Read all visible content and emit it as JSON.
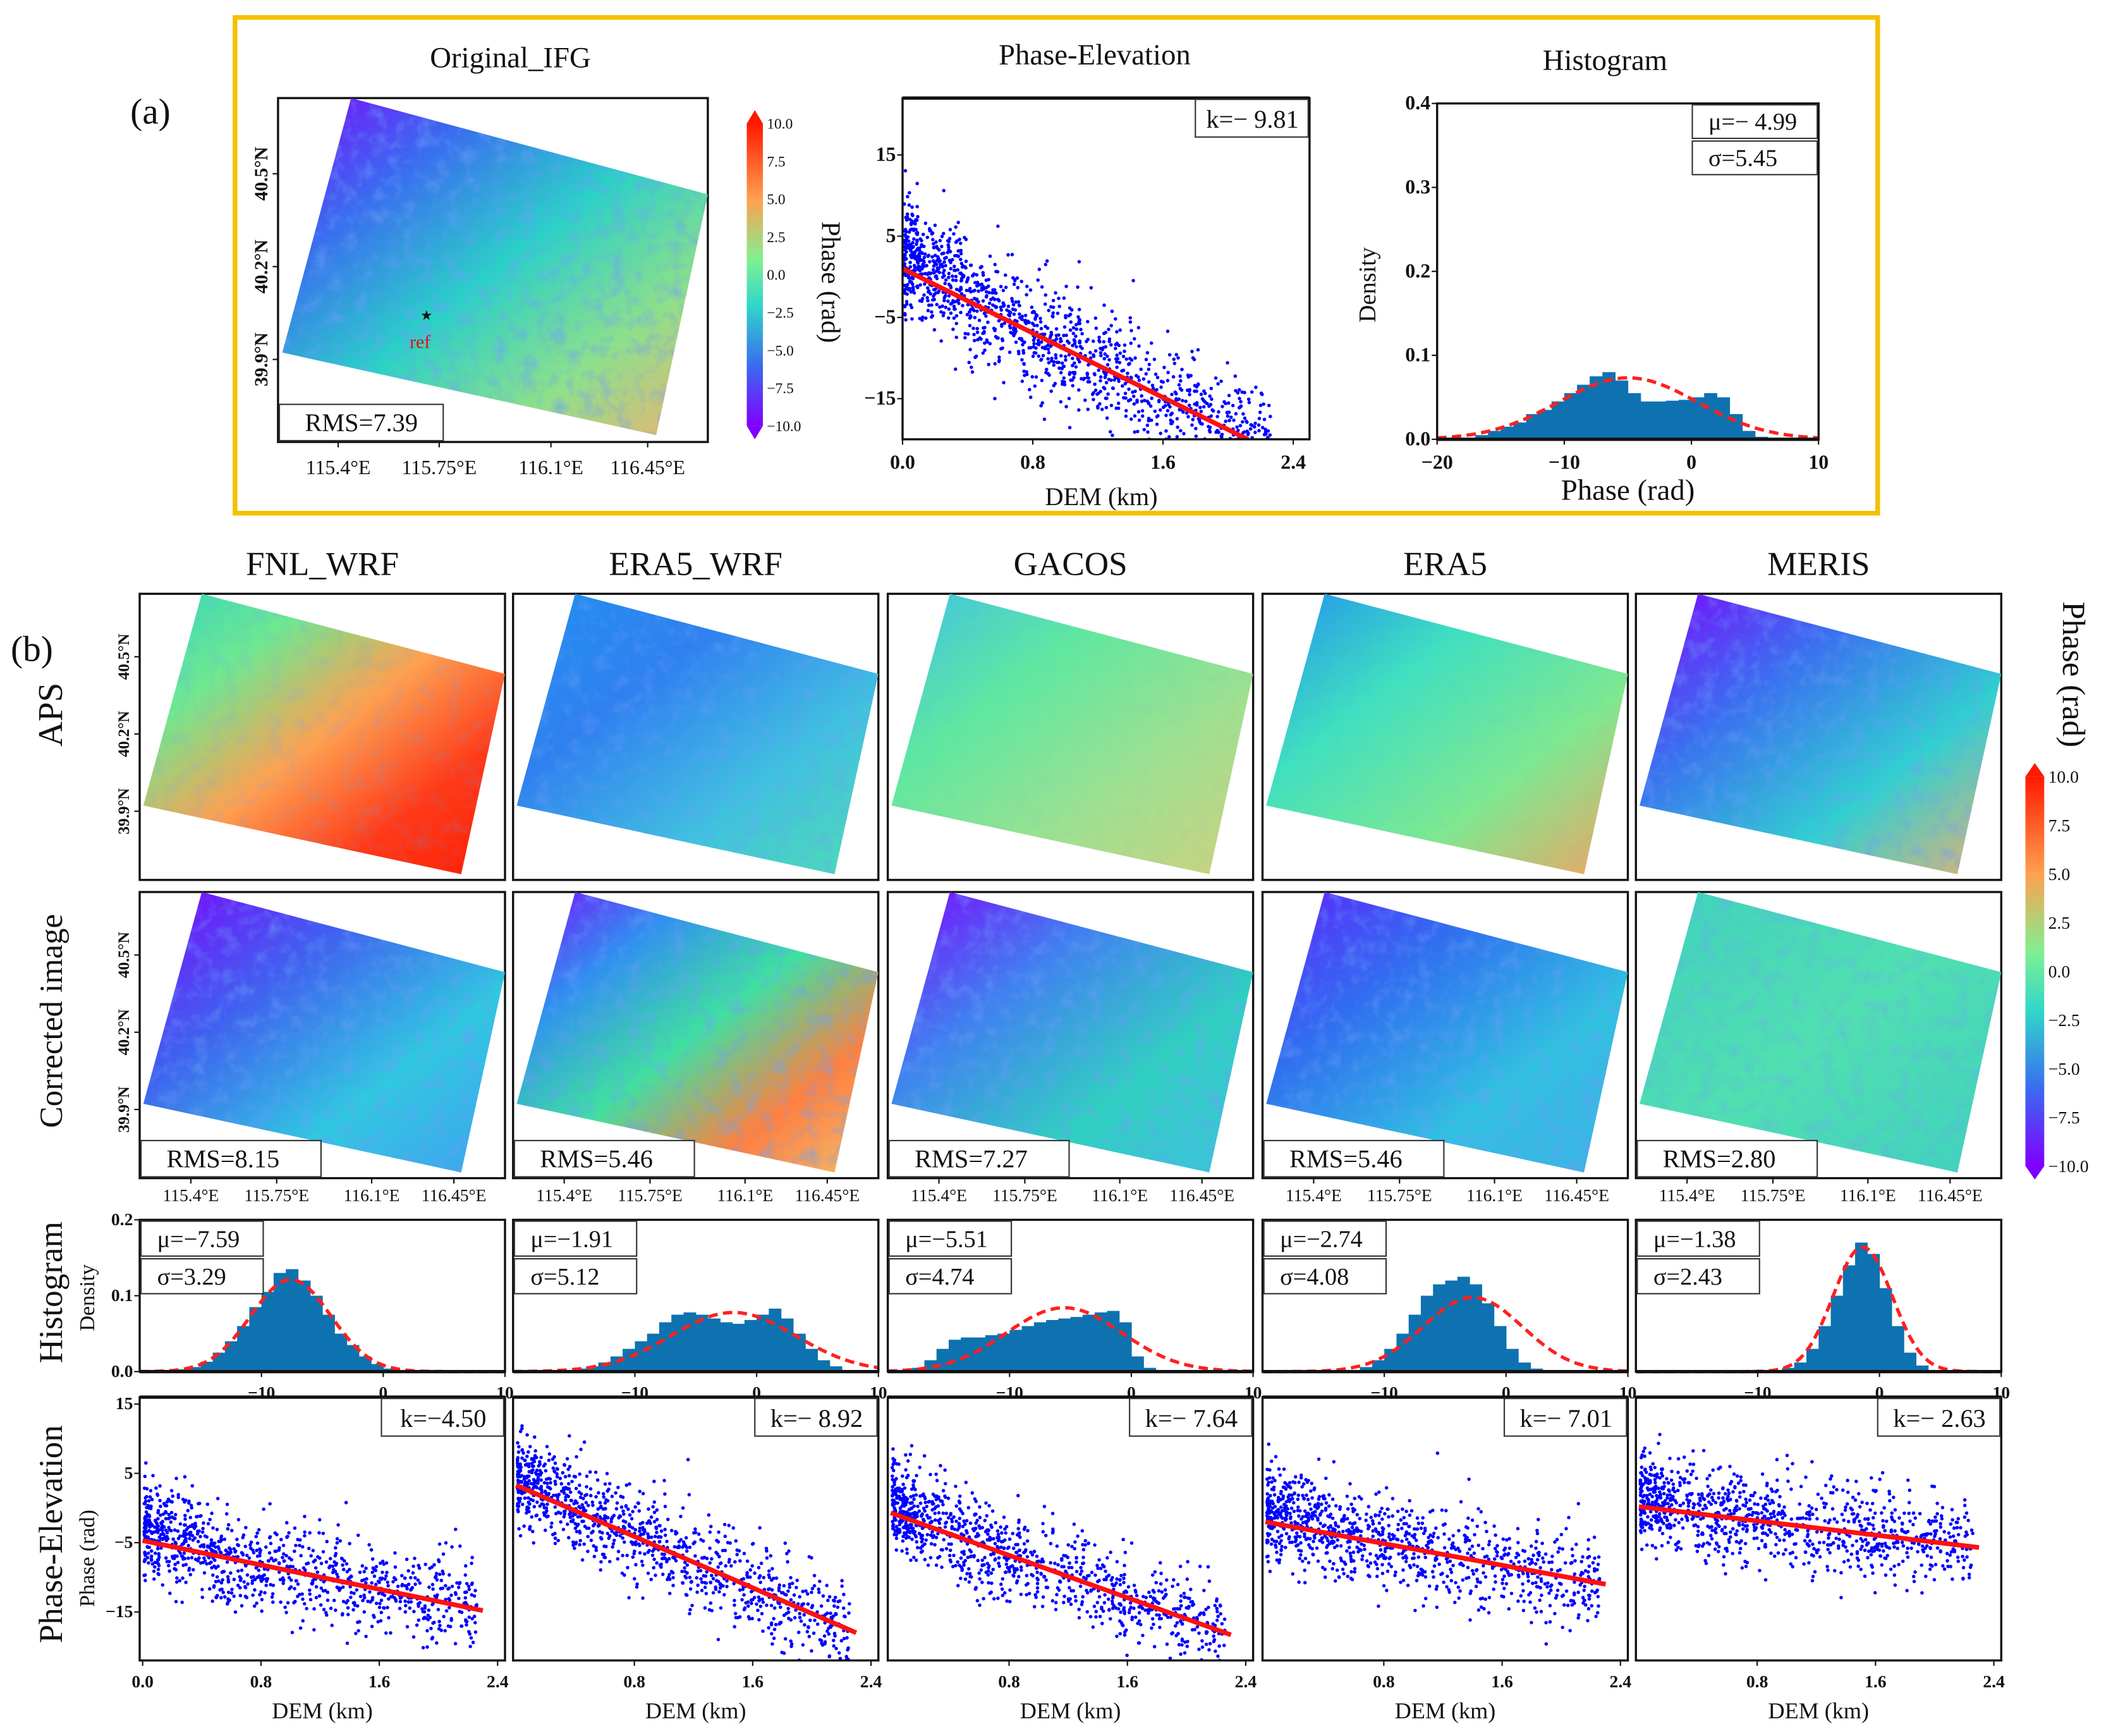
{
  "figure_labels": {
    "a": "(a)",
    "b": "(b)"
  },
  "panel_a": {
    "titles": {
      "map": "Original_IFG",
      "scatter": "Phase-Elevation",
      "hist": "Histogram"
    },
    "map": {
      "rms": "RMS=7.39",
      "ref": "ref",
      "gradient": [
        "#8000ff",
        "#3a6cf0",
        "#2ad0c8",
        "#8ee08a",
        "#f4b070"
      ],
      "noise": 0.55
    },
    "lat_ticks": [
      "39.9°N",
      "40.2°N",
      "40.5°N"
    ],
    "lon_ticks": [
      "115.4°E",
      "115.75°E",
      "116.1°E",
      "116.45°E"
    ],
    "colorbar": {
      "label": "Phase (rad)",
      "ticks": [
        "10.0",
        "7.5",
        "5.0",
        "2.5",
        "0.0",
        "−2.5",
        "−5.0",
        "−7.5",
        "−10.0"
      ]
    }
  },
  "panel_b": {
    "columns": [
      "FNL_WRF",
      "ERA5_WRF",
      "GACOS",
      "ERA5",
      "MERIS"
    ],
    "row_labels": {
      "aps": "APS",
      "corrected": "Corrected image",
      "hist": "Histogram",
      "scatter": "Phase-Elevation"
    },
    "axis_labels": {
      "density": "Density",
      "phase": "Phase (rad)",
      "dem": "DEM (km)"
    },
    "lat_ticks": [
      "39.9°N",
      "40.2°N",
      "40.5°N"
    ],
    "lon_ticks": [
      "115.4°E",
      "115.75°E",
      "116.1°E",
      "116.45°E"
    ],
    "colorbar": {
      "label": "Phase (rad)",
      "ticks": [
        "10.0",
        "7.5",
        "5.0",
        "2.5",
        "0.0",
        "−2.5",
        "−5.0",
        "−7.5",
        "−10.0"
      ]
    },
    "aps_maps": [
      {
        "gradient": [
          "#30d8c0",
          "#70e890",
          "#ffa050",
          "#ff3a18",
          "#ff1a00"
        ],
        "noise": 0.2
      },
      {
        "gradient": [
          "#2090f0",
          "#3080f0",
          "#40c0e0",
          "#50e0b0"
        ],
        "noise": 0.4
      },
      {
        "gradient": [
          "#40c0e8",
          "#60e8a0",
          "#a0e090",
          "#d0d080"
        ],
        "noise": 0.05
      },
      {
        "gradient": [
          "#2090f0",
          "#40e0c0",
          "#80e890",
          "#f8a060"
        ],
        "noise": 0.05
      },
      {
        "gradient": [
          "#8000ff",
          "#3a70f0",
          "#30d0d0",
          "#f0b070"
        ],
        "noise": 0.5
      }
    ],
    "corrected_maps": [
      {
        "rms": "RMS=8.15",
        "gradient": [
          "#8000ff",
          "#4060f0",
          "#30c8e0",
          "#40a0f0"
        ],
        "noise": 0.5
      },
      {
        "rms": "RMS=5.46",
        "gradient": [
          "#8000ff",
          "#3090f0",
          "#40e0a0",
          "#ff8040",
          "#f0c070"
        ],
        "noise": 0.5
      },
      {
        "rms": "RMS=7.27",
        "gradient": [
          "#8000ff",
          "#4080f0",
          "#30d0c0",
          "#40c0e0"
        ],
        "noise": 0.5
      },
      {
        "rms": "RMS=5.46",
        "gradient": [
          "#6020ff",
          "#3070f0",
          "#30c0e0",
          "#40b0e8"
        ],
        "noise": 0.5
      },
      {
        "rms": "RMS=2.80",
        "gradient": [
          "#40d0c0",
          "#50e0b0",
          "#40d0c0"
        ],
        "noise": 0.35
      }
    ]
  },
  "chart_data": [
    {
      "id": "a-scatter",
      "type": "scatter",
      "title": "Phase-Elevation",
      "xlabel": "DEM (km)",
      "ylabel": "",
      "xlim": [
        0,
        2.5
      ],
      "ylim": [
        -20,
        22
      ],
      "xticks": [
        0,
        0.8,
        1.6,
        2.4
      ],
      "xtick_labels": [
        "0.0",
        "0.8",
        "1.6",
        "2.4"
      ],
      "yticks": [
        15,
        5,
        -5,
        -15
      ],
      "ytick_labels": [
        "15",
        "5",
        "−5",
        "−15"
      ],
      "fit_line": {
        "x": [
          0,
          2.12
        ],
        "y": [
          1.0,
          -20.0
        ]
      },
      "annotation": "k=− 9.81"
    },
    {
      "id": "a-hist",
      "type": "bar",
      "title": "Histogram",
      "xlabel": "Phase (rad)",
      "ylabel": "Density",
      "xlim": [
        -20,
        10
      ],
      "ylim": [
        0,
        0.4
      ],
      "xticks": [
        -20,
        -10,
        0,
        10
      ],
      "xtick_labels": [
        "−20",
        "−10",
        "0",
        "10"
      ],
      "yticks": [
        0,
        0.1,
        0.2,
        0.3,
        0.4
      ],
      "ytick_labels": [
        "0.0",
        "0.1",
        "0.2",
        "0.3",
        "0.4"
      ],
      "bin_start": -20,
      "bin_width": 1,
      "density": [
        0,
        0,
        0,
        0.005,
        0.01,
        0.015,
        0.02,
        0.03,
        0.035,
        0.045,
        0.055,
        0.065,
        0.075,
        0.08,
        0.07,
        0.055,
        0.045,
        0.045,
        0.046,
        0.047,
        0.05,
        0.055,
        0.05,
        0.03,
        0.01,
        0.003,
        0,
        0,
        0,
        0
      ],
      "fit": {
        "mu": -4.99,
        "sigma": 5.45
      },
      "annotations": [
        "μ=− 4.99",
        "σ=5.45"
      ]
    },
    {
      "id": "b-hist-FNL_WRF",
      "type": "bar",
      "xlim": [
        -20,
        10
      ],
      "ylim": [
        0,
        0.2
      ],
      "xticks": [
        -10,
        0,
        10
      ],
      "xtick_labels": [
        "−10",
        "0",
        "10"
      ],
      "yticks": [
        0,
        0.1,
        0.2
      ],
      "ytick_labels": [
        "0.0",
        "0.1",
        "0.2"
      ],
      "bin_start": -20,
      "bin_width": 1,
      "density": [
        0,
        0.0005,
        0.001,
        0.003,
        0.006,
        0.013,
        0.025,
        0.04,
        0.06,
        0.085,
        0.105,
        0.13,
        0.135,
        0.12,
        0.1,
        0.075,
        0.05,
        0.035,
        0.02,
        0.01,
        0.004,
        0.002,
        0,
        0,
        0,
        0,
        0,
        0,
        0,
        0
      ],
      "fit": {
        "mu": -7.59,
        "sigma": 3.29
      },
      "annotations": [
        "μ=−7.59",
        "σ=3.29"
      ]
    },
    {
      "id": "b-hist-ERA5_WRF",
      "type": "bar",
      "xlim": [
        -20,
        10
      ],
      "ylim": [
        0,
        0.2
      ],
      "xticks": [
        -10,
        0,
        10
      ],
      "xtick_labels": [
        "−10",
        "0",
        "10"
      ],
      "yticks": [],
      "ytick_labels": [],
      "bin_start": -20,
      "bin_width": 1,
      "density": [
        0,
        0,
        0,
        0.001,
        0.002,
        0.004,
        0.007,
        0.012,
        0.02,
        0.03,
        0.04,
        0.05,
        0.065,
        0.075,
        0.078,
        0.075,
        0.07,
        0.065,
        0.063,
        0.068,
        0.075,
        0.083,
        0.07,
        0.05,
        0.03,
        0.015,
        0.007,
        0.002,
        0,
        0
      ],
      "fit": {
        "mu": -1.91,
        "sigma": 5.12
      },
      "annotations": [
        "μ=−1.91",
        "σ=5.12"
      ]
    },
    {
      "id": "b-hist-GACOS",
      "type": "bar",
      "xlim": [
        -20,
        10
      ],
      "ylim": [
        0,
        0.2
      ],
      "xticks": [
        -10,
        0,
        10
      ],
      "xtick_labels": [
        "−10",
        "0",
        "10"
      ],
      "yticks": [],
      "ytick_labels": [],
      "bin_start": -20,
      "bin_width": 1,
      "density": [
        0,
        0,
        0.005,
        0.015,
        0.03,
        0.042,
        0.045,
        0.045,
        0.048,
        0.05,
        0.055,
        0.06,
        0.065,
        0.068,
        0.07,
        0.072,
        0.075,
        0.078,
        0.08,
        0.065,
        0.02,
        0.005,
        0.001,
        0,
        0,
        0,
        0,
        0,
        0,
        0
      ],
      "fit": {
        "mu": -5.51,
        "sigma": 4.74
      },
      "annotations": [
        "μ=−5.51",
        "σ=4.74"
      ]
    },
    {
      "id": "b-hist-ERA5",
      "type": "bar",
      "xlim": [
        -20,
        10
      ],
      "ylim": [
        0,
        0.2
      ],
      "xticks": [
        -10,
        0,
        10
      ],
      "xtick_labels": [
        "−10",
        "0",
        "10"
      ],
      "yticks": [],
      "ytick_labels": [],
      "bin_start": -20,
      "bin_width": 1,
      "density": [
        0,
        0,
        0,
        0,
        0,
        0,
        0,
        0.002,
        0.006,
        0.015,
        0.03,
        0.05,
        0.075,
        0.1,
        0.115,
        0.12,
        0.125,
        0.115,
        0.09,
        0.06,
        0.03,
        0.012,
        0.004,
        0.001,
        0,
        0,
        0,
        0,
        0,
        0
      ],
      "fit": {
        "mu": -2.74,
        "sigma": 4.08
      },
      "annotations": [
        "μ=−2.74",
        "σ=4.08"
      ]
    },
    {
      "id": "b-hist-MERIS",
      "type": "bar",
      "xlim": [
        -20,
        10
      ],
      "ylim": [
        0,
        0.2
      ],
      "xticks": [
        -10,
        0,
        10
      ],
      "xtick_labels": [
        "−10",
        "0",
        "10"
      ],
      "yticks": [],
      "ytick_labels": [],
      "bin_start": -20,
      "bin_width": 1,
      "density": [
        0,
        0,
        0,
        0,
        0,
        0,
        0,
        0,
        0,
        0,
        0,
        0.002,
        0.005,
        0.012,
        0.03,
        0.06,
        0.1,
        0.14,
        0.17,
        0.155,
        0.11,
        0.06,
        0.025,
        0.008,
        0.002,
        0,
        0,
        0,
        0,
        0
      ],
      "fit": {
        "mu": -1.38,
        "sigma": 2.43
      },
      "annotations": [
        "μ=−1.38",
        "σ=2.43"
      ]
    },
    {
      "id": "b-scatter-FNL_WRF",
      "type": "scatter",
      "xlabel": "DEM (km)",
      "xlim": [
        -0.02,
        2.45
      ],
      "ylim": [
        -22,
        16
      ],
      "xticks": [
        0,
        0.8,
        1.6,
        2.4
      ],
      "xtick_labels": [
        "0.0",
        "0.8",
        "1.6",
        "2.4"
      ],
      "yticks": [
        15,
        5,
        -5,
        -15
      ],
      "ytick_labels": [
        "15",
        "5",
        "−5",
        "−15"
      ],
      "fit_line": {
        "x": [
          0,
          2.3
        ],
        "y": [
          -4.7,
          -14.8
        ]
      },
      "annotation": "k=−4.50"
    },
    {
      "id": "b-scatter-ERA5_WRF",
      "type": "scatter",
      "xlabel": "DEM (km)",
      "xlim": [
        -0.02,
        2.45
      ],
      "ylim": [
        -22,
        16
      ],
      "xticks": [
        0.8,
        1.6,
        2.4
      ],
      "xtick_labels": [
        "0.8",
        "1.6",
        "2.4"
      ],
      "yticks": [],
      "ytick_labels": [],
      "fit_line": {
        "x": [
          0,
          2.3
        ],
        "y": [
          3.3,
          -18.0
        ]
      },
      "annotation": "k=− 8.92"
    },
    {
      "id": "b-scatter-GACOS",
      "type": "scatter",
      "xlabel": "DEM (km)",
      "xlim": [
        -0.02,
        2.45
      ],
      "ylim": [
        -22,
        16
      ],
      "xticks": [
        0.8,
        1.6,
        2.4
      ],
      "xtick_labels": [
        "0.8",
        "1.6",
        "2.4"
      ],
      "yticks": [],
      "ytick_labels": [],
      "fit_line": {
        "x": [
          0,
          2.3
        ],
        "y": [
          -0.7,
          -18.3
        ]
      },
      "annotation": "k=− 7.64"
    },
    {
      "id": "b-scatter-ERA5",
      "type": "scatter",
      "xlabel": "DEM (km)",
      "xlim": [
        -0.02,
        2.45
      ],
      "ylim": [
        -22,
        16
      ],
      "xticks": [
        0.8,
        1.6,
        2.4
      ],
      "xtick_labels": [
        "0.8",
        "1.6",
        "2.4"
      ],
      "yticks": [],
      "ytick_labels": [],
      "fit_line": {
        "x": [
          0,
          2.3
        ],
        "y": [
          -2.0,
          -11.0
        ]
      },
      "annotation": "k=− 7.01"
    },
    {
      "id": "b-scatter-MERIS",
      "type": "scatter",
      "xlabel": "DEM (km)",
      "xlim": [
        -0.02,
        2.45
      ],
      "ylim": [
        -22,
        16
      ],
      "xticks": [
        0.8,
        1.6,
        2.4
      ],
      "xtick_labels": [
        "0.8",
        "1.6",
        "2.4"
      ],
      "yticks": [],
      "ytick_labels": [],
      "fit_line": {
        "x": [
          0,
          2.3
        ],
        "y": [
          0.2,
          -5.7
        ]
      },
      "annotation": "k=− 2.63"
    }
  ]
}
